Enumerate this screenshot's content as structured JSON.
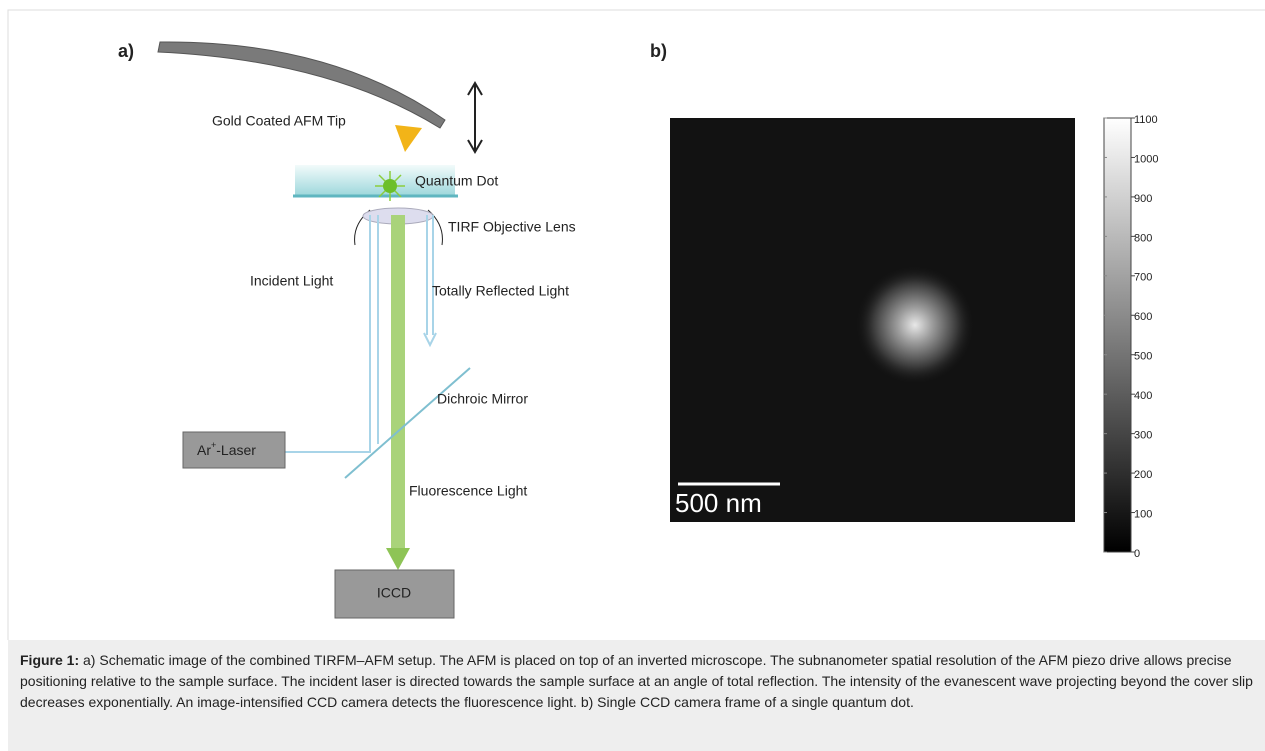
{
  "panel_a": {
    "label": "a)",
    "tip": "Gold Coated AFM Tip",
    "dot": "Quantum Dot",
    "lens": "TIRF Objective Lens",
    "incident": "Incident Light",
    "reflected": "Totally Reflected Light",
    "mirror": "Dichroic Mirror",
    "laser": {
      "base": "Ar",
      "sup": "+",
      "rest": "-Laser"
    },
    "fluorescence": "Fluorescence Light",
    "camera": "ICCD"
  },
  "panel_b": {
    "label": "b)",
    "scale_bar": "500 nm",
    "colorbar": {
      "lim": [
        0,
        1100
      ],
      "ticks": [
        0,
        100,
        200,
        300,
        400,
        500,
        600,
        700,
        800,
        900,
        1000,
        1100
      ]
    }
  },
  "caption": {
    "label": "Figure 1:",
    "text": "a) Schematic image of the combined TIRFM–AFM setup. The AFM is placed on top of an inverted microscope. The subnanometer spatial resolution of the AFM piezo drive allows precise positioning relative to the sample surface. The incident laser is directed towards the sample surface at an angle of total reflection. The intensity of the evanescent wave projecting beyond the cover slip decreases exponentially. An image-intensified CCD camera detects the fluorescence light. b) Single CCD camera frame of a single quantum dot."
  }
}
